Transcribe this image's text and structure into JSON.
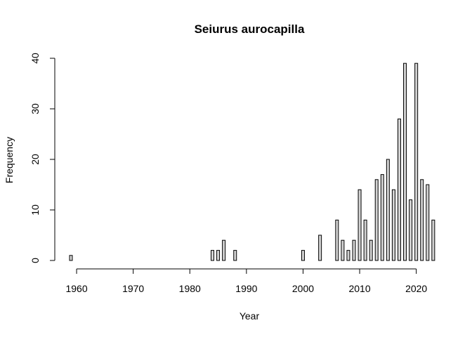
{
  "chart_data": {
    "type": "bar",
    "title": "Seiurus aurocapilla",
    "xlabel": "Year",
    "ylabel": "Frequency",
    "ylim": [
      0,
      40
    ],
    "xlim": [
      1959,
      2023
    ],
    "x_ticks": [
      1960,
      1970,
      1980,
      1990,
      2000,
      2010,
      2020
    ],
    "y_ticks": [
      0,
      10,
      20,
      30,
      40
    ],
    "bar_fill": "#d3d3d3",
    "bar_stroke": "#000000",
    "series": [
      {
        "x": [
          1959,
          1960,
          1961,
          1962,
          1963,
          1964,
          1965,
          1966,
          1967,
          1968,
          1969,
          1970,
          1971,
          1972,
          1973,
          1974,
          1975,
          1976,
          1977,
          1978,
          1979,
          1980,
          1981,
          1982,
          1983,
          1984,
          1985,
          1986,
          1987,
          1988,
          1989,
          1990,
          1991,
          1992,
          1993,
          1994,
          1995,
          1996,
          1997,
          1998,
          1999,
          2000,
          2001,
          2002,
          2003,
          2004,
          2005,
          2006,
          2007,
          2008,
          2009,
          2010,
          2011,
          2012,
          2013,
          2014,
          2015,
          2016,
          2017,
          2018,
          2019,
          2020,
          2021,
          2022,
          2023
        ],
        "values": [
          1,
          0,
          0,
          0,
          0,
          0,
          0,
          0,
          0,
          0,
          0,
          0,
          0,
          0,
          0,
          0,
          0,
          0,
          0,
          0,
          0,
          0,
          0,
          0,
          0,
          2,
          2,
          4,
          0,
          2,
          0,
          0,
          0,
          0,
          0,
          0,
          0,
          0,
          0,
          0,
          0,
          2,
          0,
          0,
          5,
          0,
          0,
          8,
          4,
          2,
          4,
          14,
          8,
          4,
          16,
          17,
          20,
          14,
          28,
          39,
          12,
          39,
          16,
          15,
          8
        ]
      }
    ]
  }
}
